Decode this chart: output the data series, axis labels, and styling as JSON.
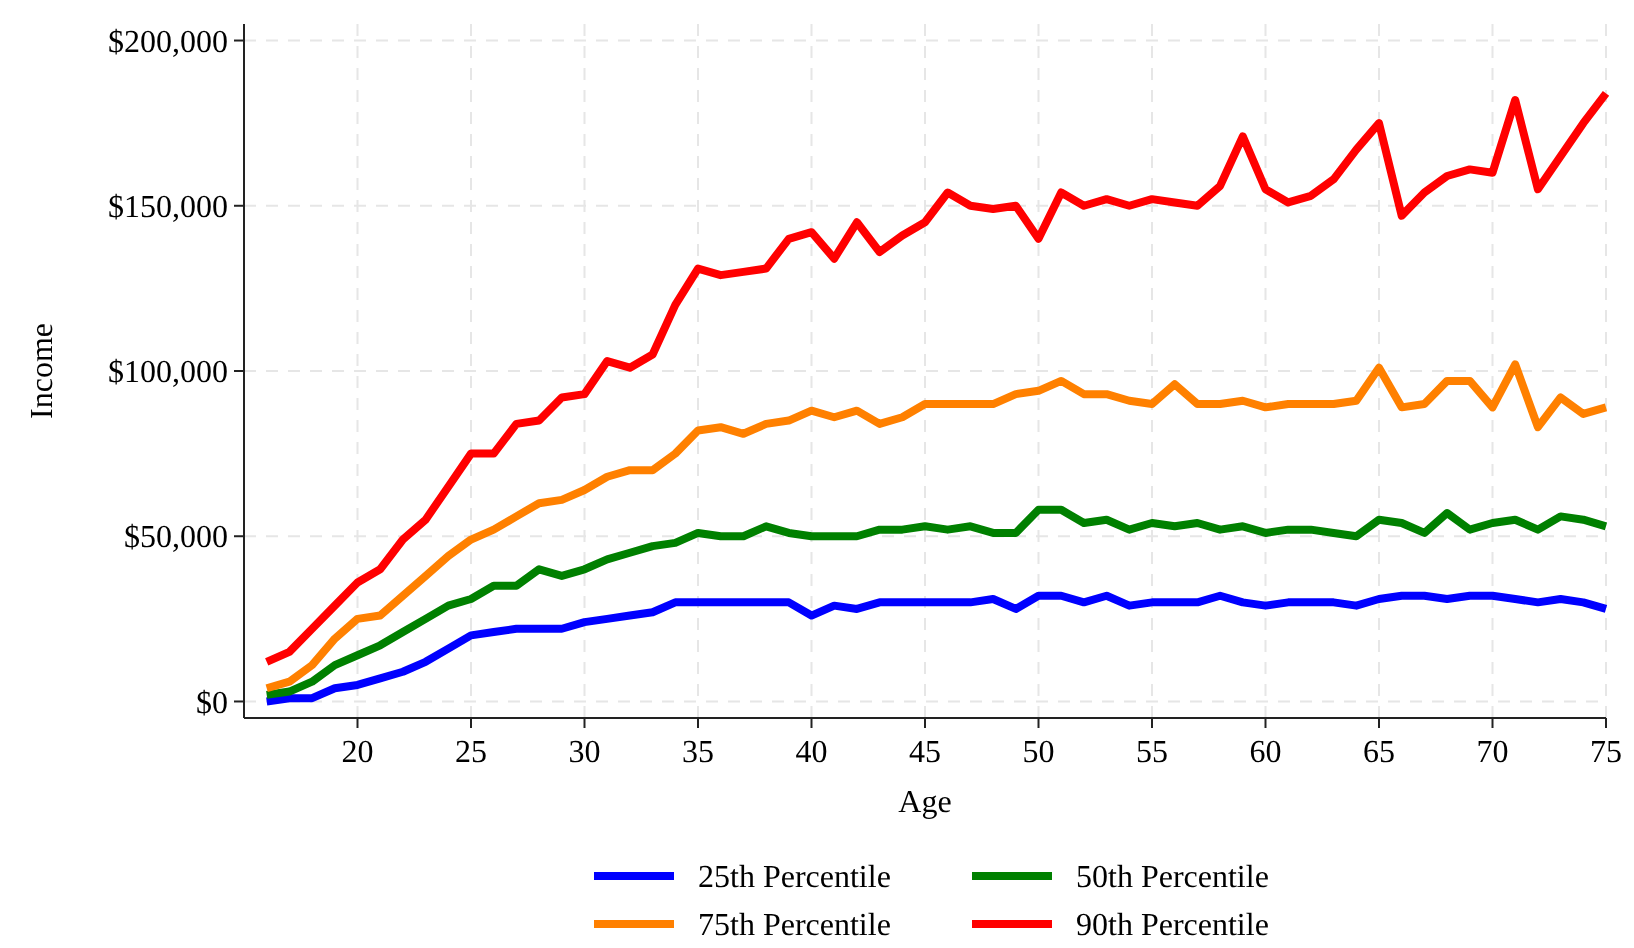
{
  "chart_data": {
    "type": "line",
    "xlabel": "Age",
    "ylabel": "Income",
    "x": [
      16,
      17,
      18,
      19,
      20,
      21,
      22,
      23,
      24,
      25,
      26,
      27,
      28,
      29,
      30,
      31,
      32,
      33,
      34,
      35,
      36,
      37,
      38,
      39,
      40,
      41,
      42,
      43,
      44,
      45,
      46,
      47,
      48,
      49,
      50,
      51,
      52,
      53,
      54,
      55,
      56,
      57,
      58,
      59,
      60,
      61,
      62,
      63,
      64,
      65,
      66,
      67,
      68,
      69,
      70,
      71,
      72,
      73,
      74,
      75
    ],
    "series": [
      {
        "name": "25th Percentile",
        "color": "#0000ff",
        "values": [
          0,
          1000,
          1000,
          4000,
          5000,
          7000,
          9000,
          12000,
          16000,
          20000,
          21000,
          22000,
          22000,
          22000,
          24000,
          25000,
          26000,
          27000,
          30000,
          30000,
          30000,
          30000,
          30000,
          30000,
          26000,
          29000,
          28000,
          30000,
          30000,
          30000,
          30000,
          30000,
          31000,
          28000,
          32000,
          32000,
          30000,
          32000,
          29000,
          30000,
          30000,
          30000,
          32000,
          30000,
          29000,
          30000,
          30000,
          30000,
          29000,
          31000,
          32000,
          32000,
          31000,
          32000,
          32000,
          31000,
          30000,
          31000,
          30000,
          28000
        ]
      },
      {
        "name": "50th Percentile",
        "color": "#008000",
        "values": [
          2000,
          3000,
          6000,
          11000,
          14000,
          17000,
          21000,
          25000,
          29000,
          31000,
          35000,
          35000,
          40000,
          38000,
          40000,
          43000,
          45000,
          47000,
          48000,
          51000,
          50000,
          50000,
          53000,
          51000,
          50000,
          50000,
          50000,
          52000,
          52000,
          53000,
          52000,
          53000,
          51000,
          51000,
          58000,
          58000,
          54000,
          55000,
          52000,
          54000,
          53000,
          54000,
          52000,
          53000,
          51000,
          52000,
          52000,
          51000,
          50000,
          55000,
          54000,
          51000,
          57000,
          52000,
          54000,
          55000,
          52000,
          56000,
          55000,
          53000
        ]
      },
      {
        "name": "75th Percentile",
        "color": "#ff8000",
        "values": [
          4000,
          6000,
          11000,
          19000,
          25000,
          26000,
          32000,
          38000,
          44000,
          49000,
          52000,
          56000,
          60000,
          61000,
          64000,
          68000,
          70000,
          70000,
          75000,
          82000,
          83000,
          81000,
          84000,
          85000,
          88000,
          86000,
          88000,
          84000,
          86000,
          90000,
          90000,
          90000,
          90000,
          93000,
          94000,
          97000,
          93000,
          93000,
          91000,
          90000,
          96000,
          90000,
          90000,
          91000,
          89000,
          90000,
          90000,
          90000,
          91000,
          101000,
          89000,
          90000,
          97000,
          97000,
          89000,
          102000,
          83000,
          92000,
          87000,
          89000
        ]
      },
      {
        "name": "90th Percentile",
        "color": "#ff0000",
        "values": [
          12000,
          15000,
          22000,
          29000,
          36000,
          40000,
          49000,
          55000,
          65000,
          75000,
          75000,
          84000,
          85000,
          92000,
          93000,
          103000,
          101000,
          105000,
          120000,
          131000,
          129000,
          130000,
          131000,
          140000,
          142000,
          134000,
          145000,
          136000,
          141000,
          145000,
          154000,
          150000,
          149000,
          150000,
          140000,
          154000,
          150000,
          152000,
          150000,
          152000,
          151000,
          150000,
          156000,
          171000,
          155000,
          151000,
          153000,
          158000,
          167000,
          175000,
          147000,
          154000,
          159000,
          161000,
          160000,
          182000,
          155000,
          165000,
          175000,
          184000
        ]
      }
    ],
    "xlim": [
      15,
      75
    ],
    "xticks": [
      20,
      25,
      30,
      35,
      40,
      45,
      50,
      55,
      60,
      65,
      70,
      75
    ],
    "ylim": [
      -5000,
      205000
    ],
    "yticks": [
      {
        "value": 0,
        "label": "$0"
      },
      {
        "value": 50000,
        "label": "$50,000"
      },
      {
        "value": 100000,
        "label": "$100,000"
      },
      {
        "value": 150000,
        "label": "$150,000"
      },
      {
        "value": 200000,
        "label": "$200,000"
      }
    ],
    "grid": true,
    "legend": "bottom",
    "line_style": "solid",
    "marker": "none"
  }
}
